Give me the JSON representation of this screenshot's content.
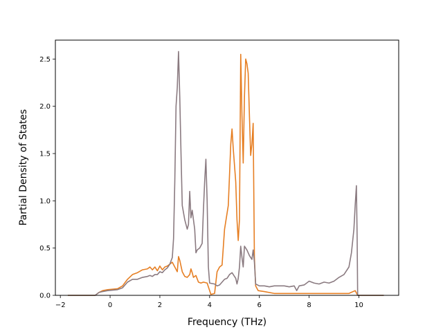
{
  "chart_data": {
    "type": "line",
    "xlabel": "Frequency (THz)",
    "ylabel": "Partial Density of States",
    "xlim": [
      -2.2,
      11.6
    ],
    "ylim": [
      0.0,
      2.7
    ],
    "x_ticks": [
      -2,
      0,
      2,
      4,
      6,
      8,
      10
    ],
    "x_tick_labels": [
      "−2",
      "0",
      "2",
      "4",
      "6",
      "8",
      "10"
    ],
    "y_ticks": [
      0.0,
      0.5,
      1.0,
      1.5,
      2.0,
      2.5
    ],
    "y_tick_labels": [
      "0.0",
      "0.5",
      "1.0",
      "1.5",
      "2.0",
      "2.5"
    ],
    "grid": false,
    "series": [
      {
        "color": "#e67e22",
        "points": [
          [
            -1.7,
            0.0
          ],
          [
            -0.6,
            0.0
          ],
          [
            -0.45,
            0.03
          ],
          [
            -0.3,
            0.05
          ],
          [
            -0.1,
            0.06
          ],
          [
            0.3,
            0.07
          ],
          [
            0.5,
            0.1
          ],
          [
            0.7,
            0.17
          ],
          [
            0.9,
            0.22
          ],
          [
            1.1,
            0.24
          ],
          [
            1.3,
            0.27
          ],
          [
            1.5,
            0.28
          ],
          [
            1.6,
            0.3
          ],
          [
            1.7,
            0.27
          ],
          [
            1.8,
            0.3
          ],
          [
            1.9,
            0.26
          ],
          [
            2.0,
            0.31
          ],
          [
            2.1,
            0.27
          ],
          [
            2.2,
            0.3
          ],
          [
            2.3,
            0.31
          ],
          [
            2.4,
            0.33
          ],
          [
            2.5,
            0.35
          ],
          [
            2.6,
            0.3
          ],
          [
            2.7,
            0.25
          ],
          [
            2.75,
            0.41
          ],
          [
            2.8,
            0.37
          ],
          [
            2.9,
            0.25
          ],
          [
            3.0,
            0.2
          ],
          [
            3.1,
            0.19
          ],
          [
            3.2,
            0.22
          ],
          [
            3.25,
            0.28
          ],
          [
            3.3,
            0.24
          ],
          [
            3.35,
            0.19
          ],
          [
            3.45,
            0.21
          ],
          [
            3.55,
            0.14
          ],
          [
            3.65,
            0.13
          ],
          [
            3.75,
            0.14
          ],
          [
            3.9,
            0.13
          ],
          [
            4.0,
            0.05
          ],
          [
            4.05,
            0.01
          ],
          [
            4.2,
            0.02
          ],
          [
            4.3,
            0.25
          ],
          [
            4.4,
            0.3
          ],
          [
            4.5,
            0.32
          ],
          [
            4.6,
            0.7
          ],
          [
            4.75,
            0.95
          ],
          [
            4.85,
            1.6
          ],
          [
            4.9,
            1.76
          ],
          [
            4.95,
            1.55
          ],
          [
            5.05,
            1.2
          ],
          [
            5.1,
            0.8
          ],
          [
            5.15,
            0.58
          ],
          [
            5.2,
            0.8
          ],
          [
            5.25,
            2.55
          ],
          [
            5.3,
            1.9
          ],
          [
            5.35,
            1.4
          ],
          [
            5.4,
            2.1
          ],
          [
            5.45,
            2.5
          ],
          [
            5.5,
            2.45
          ],
          [
            5.55,
            2.35
          ],
          [
            5.6,
            1.9
          ],
          [
            5.65,
            1.48
          ],
          [
            5.7,
            1.6
          ],
          [
            5.75,
            1.82
          ],
          [
            5.8,
            0.4
          ],
          [
            5.85,
            0.1
          ],
          [
            5.95,
            0.05
          ],
          [
            6.2,
            0.04
          ],
          [
            6.6,
            0.02
          ],
          [
            7.2,
            0.02
          ],
          [
            8.0,
            0.02
          ],
          [
            8.8,
            0.02
          ],
          [
            9.6,
            0.02
          ],
          [
            9.85,
            0.05
          ],
          [
            9.95,
            0.0
          ],
          [
            11.0,
            0.0
          ]
        ]
      },
      {
        "color": "#8a7a80",
        "points": [
          [
            -1.7,
            0.0
          ],
          [
            -0.6,
            0.0
          ],
          [
            -0.45,
            0.03
          ],
          [
            -0.3,
            0.04
          ],
          [
            -0.1,
            0.05
          ],
          [
            0.3,
            0.06
          ],
          [
            0.5,
            0.08
          ],
          [
            0.7,
            0.14
          ],
          [
            0.9,
            0.17
          ],
          [
            1.1,
            0.17
          ],
          [
            1.3,
            0.19
          ],
          [
            1.5,
            0.2
          ],
          [
            1.6,
            0.21
          ],
          [
            1.7,
            0.2
          ],
          [
            1.8,
            0.22
          ],
          [
            1.9,
            0.22
          ],
          [
            2.0,
            0.25
          ],
          [
            2.1,
            0.24
          ],
          [
            2.2,
            0.27
          ],
          [
            2.3,
            0.29
          ],
          [
            2.4,
            0.33
          ],
          [
            2.5,
            0.4
          ],
          [
            2.55,
            0.6
          ],
          [
            2.6,
            1.2
          ],
          [
            2.65,
            2.0
          ],
          [
            2.7,
            2.2
          ],
          [
            2.75,
            2.58
          ],
          [
            2.8,
            2.1
          ],
          [
            2.85,
            1.5
          ],
          [
            2.9,
            0.95
          ],
          [
            3.0,
            0.8
          ],
          [
            3.1,
            0.7
          ],
          [
            3.15,
            0.75
          ],
          [
            3.2,
            1.1
          ],
          [
            3.25,
            0.82
          ],
          [
            3.3,
            0.9
          ],
          [
            3.35,
            0.8
          ],
          [
            3.4,
            0.7
          ],
          [
            3.45,
            0.45
          ],
          [
            3.5,
            0.48
          ],
          [
            3.6,
            0.5
          ],
          [
            3.7,
            0.55
          ],
          [
            3.75,
            0.9
          ],
          [
            3.8,
            1.2
          ],
          [
            3.85,
            1.44
          ],
          [
            3.9,
            1.0
          ],
          [
            3.95,
            0.3
          ],
          [
            4.0,
            0.13
          ],
          [
            4.2,
            0.12
          ],
          [
            4.3,
            0.1
          ],
          [
            4.4,
            0.11
          ],
          [
            4.5,
            0.14
          ],
          [
            4.6,
            0.17
          ],
          [
            4.7,
            0.18
          ],
          [
            4.8,
            0.22
          ],
          [
            4.9,
            0.24
          ],
          [
            4.95,
            0.22
          ],
          [
            5.05,
            0.18
          ],
          [
            5.1,
            0.12
          ],
          [
            5.15,
            0.18
          ],
          [
            5.2,
            0.3
          ],
          [
            5.25,
            0.52
          ],
          [
            5.3,
            0.4
          ],
          [
            5.35,
            0.3
          ],
          [
            5.4,
            0.52
          ],
          [
            5.5,
            0.48
          ],
          [
            5.6,
            0.42
          ],
          [
            5.7,
            0.38
          ],
          [
            5.75,
            0.48
          ],
          [
            5.8,
            0.35
          ],
          [
            5.85,
            0.12
          ],
          [
            6.0,
            0.1
          ],
          [
            6.2,
            0.1
          ],
          [
            6.4,
            0.09
          ],
          [
            6.6,
            0.1
          ],
          [
            7.0,
            0.1
          ],
          [
            7.2,
            0.09
          ],
          [
            7.4,
            0.1
          ],
          [
            7.5,
            0.05
          ],
          [
            7.6,
            0.1
          ],
          [
            7.8,
            0.11
          ],
          [
            8.0,
            0.15
          ],
          [
            8.2,
            0.13
          ],
          [
            8.4,
            0.12
          ],
          [
            8.6,
            0.14
          ],
          [
            8.8,
            0.13
          ],
          [
            9.0,
            0.15
          ],
          [
            9.2,
            0.19
          ],
          [
            9.4,
            0.22
          ],
          [
            9.6,
            0.3
          ],
          [
            9.7,
            0.45
          ],
          [
            9.8,
            0.7
          ],
          [
            9.85,
            0.95
          ],
          [
            9.9,
            1.16
          ],
          [
            9.93,
            0.6
          ],
          [
            9.95,
            0.0
          ],
          [
            11.0,
            0.0
          ]
        ]
      }
    ]
  }
}
